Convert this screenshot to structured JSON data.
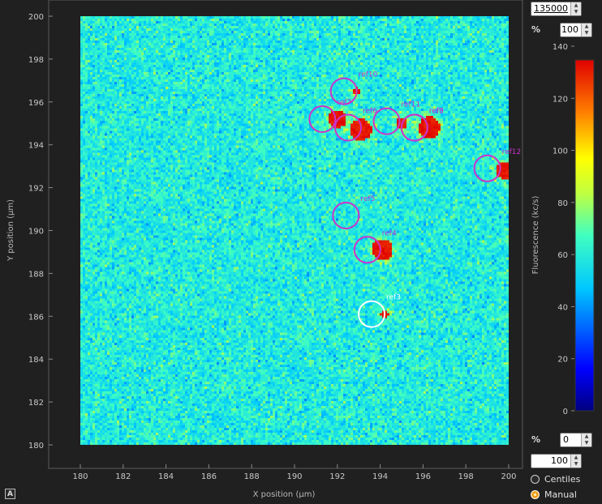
{
  "chart_data": {
    "type": "heatmap",
    "xlabel": "X position (µm)",
    "ylabel": "Y position (µm)",
    "xlim": [
      180,
      200
    ],
    "ylim": [
      180,
      200
    ],
    "x_ticks": [
      "180",
      "182",
      "184",
      "186",
      "188",
      "190",
      "192",
      "194",
      "196",
      "198",
      "200"
    ],
    "y_ticks": [
      "180",
      "182",
      "184",
      "186",
      "188",
      "190",
      "192",
      "194",
      "196",
      "198",
      "200"
    ],
    "colorbar": {
      "label": "Fluorescence (kc/s)",
      "range": [
        0,
        140
      ],
      "ticks": [
        "0",
        "20",
        "40",
        "60",
        "80",
        "100",
        "120",
        "140"
      ]
    },
    "hotspots": [
      {
        "x": 192.0,
        "y": 195.2,
        "r": 0.42
      },
      {
        "x": 193.1,
        "y": 194.7,
        "r": 0.5
      },
      {
        "x": 192.9,
        "y": 196.5,
        "r": 0.18
      },
      {
        "x": 195.0,
        "y": 195.0,
        "r": 0.28
      },
      {
        "x": 196.3,
        "y": 194.8,
        "r": 0.5
      },
      {
        "x": 199.8,
        "y": 192.8,
        "r": 0.4
      },
      {
        "x": 194.1,
        "y": 189.1,
        "r": 0.5
      },
      {
        "x": 194.2,
        "y": 186.1,
        "r": 0.18
      }
    ],
    "markers": [
      {
        "label": "ref3",
        "x": 193.6,
        "y": 186.1,
        "color": "#ffffff"
      },
      {
        "label": "ref4",
        "x": 193.4,
        "y": 189.1,
        "color": "#cc33cc"
      },
      {
        "label": "ref5",
        "x": 192.4,
        "y": 190.7,
        "color": "#cc33cc"
      },
      {
        "label": "ref6",
        "x": 192.5,
        "y": 194.8,
        "color": "#cc33cc"
      },
      {
        "label": "ref7",
        "x": 191.3,
        "y": 195.2,
        "color": "#cc33cc"
      },
      {
        "label": "ref8",
        "x": 195.6,
        "y": 194.8,
        "color": "#cc33cc"
      },
      {
        "label": "ref9",
        "x": 195.6,
        "y": 194.8,
        "color": "#cc33cc"
      },
      {
        "label": "ref10",
        "x": 192.3,
        "y": 196.5,
        "color": "#cc33cc"
      },
      {
        "label": "ref11",
        "x": 194.3,
        "y": 195.1,
        "color": "#cc33cc"
      },
      {
        "label": "ref12",
        "x": 199.0,
        "y": 192.9,
        "color": "#cc33cc"
      }
    ]
  },
  "controls": {
    "max_value": "135000",
    "max_pct_label": "%",
    "max_pct_value": "100",
    "min_pct_label": "%",
    "min_pct_value": "0",
    "min_value": "100",
    "centiles_label": "Centiles",
    "manual_label": "Manual",
    "corner_button_label": "A",
    "up_arrow": "▲",
    "down_arrow": "▼"
  }
}
